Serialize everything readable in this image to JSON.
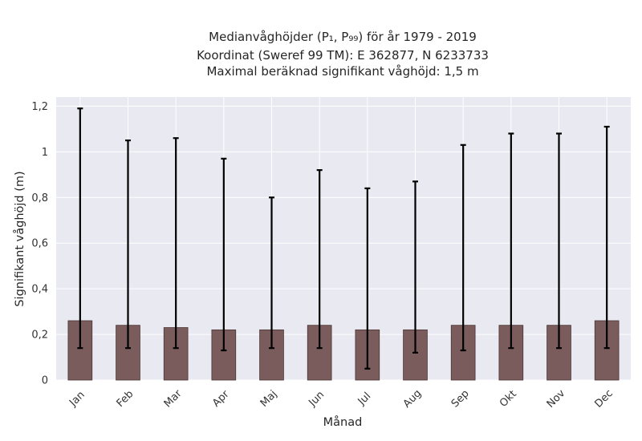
{
  "chart_data": {
    "type": "bar",
    "title_lines": [
      "Medianvåghöjder (P₁, P₉₉) för år 1979 - 2019",
      "Koordinat (Sweref 99 TM): E 362877, N 6233733",
      "Maximal beräknad signifikant våghöjd: 1,5 m"
    ],
    "xlabel": "Månad",
    "ylabel": "Signifikant våghöjd (m)",
    "categories": [
      "Jan",
      "Feb",
      "Mar",
      "Apr",
      "Maj",
      "Jun",
      "Jul",
      "Aug",
      "Sep",
      "Okt",
      "Nov",
      "Dec"
    ],
    "values": [
      0.26,
      0.24,
      0.23,
      0.22,
      0.22,
      0.24,
      0.22,
      0.22,
      0.24,
      0.24,
      0.24,
      0.26
    ],
    "p1": [
      0.14,
      0.14,
      0.14,
      0.13,
      0.14,
      0.14,
      0.05,
      0.12,
      0.13,
      0.14,
      0.14,
      0.14
    ],
    "p99": [
      1.19,
      1.05,
      1.06,
      0.97,
      0.8,
      0.92,
      0.84,
      0.87,
      1.03,
      1.08,
      1.08,
      1.11
    ],
    "ylim": [
      0,
      1.24
    ],
    "yticks": [
      0,
      0.2,
      0.4,
      0.6,
      0.8,
      1,
      1.2
    ],
    "ytick_labels": [
      "0",
      "0,2",
      "0,4",
      "0,6",
      "0,8",
      "1",
      "1,2"
    ],
    "grid": true,
    "colors": {
      "bar": "#7b5c5c",
      "bar_edge": "#4a3535",
      "errorbar": "#000000",
      "plot_background": "#e9e9f1",
      "grid": "#ffffff"
    }
  }
}
